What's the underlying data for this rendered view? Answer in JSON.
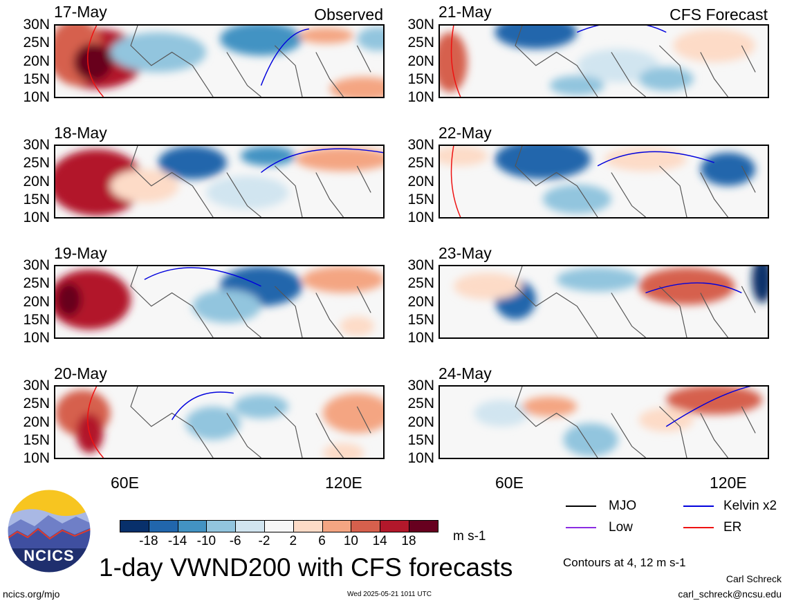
{
  "chart_data": {
    "type": "heatmap",
    "title": "1-day VWND200 with CFS forecasts",
    "columns": {
      "left": "Observed",
      "right": "CFS Forecast"
    },
    "panels": [
      {
        "date": "17-May",
        "source": "observed"
      },
      {
        "date": "18-May",
        "source": "observed"
      },
      {
        "date": "19-May",
        "source": "observed"
      },
      {
        "date": "20-May",
        "source": "observed"
      },
      {
        "date": "21-May",
        "source": "forecast"
      },
      {
        "date": "22-May",
        "source": "forecast"
      },
      {
        "date": "23-May",
        "source": "forecast"
      },
      {
        "date": "24-May",
        "source": "forecast"
      }
    ],
    "y_ticks": [
      "30N",
      "25N",
      "20N",
      "15N",
      "10N"
    ],
    "x_ticks": [
      "60E",
      "120E"
    ],
    "lat_range": [
      10,
      30
    ],
    "colorbar": {
      "labels": [
        "-18",
        "-14",
        "-10",
        "-6",
        "-2",
        "2",
        "6",
        "10",
        "14",
        "18"
      ],
      "unit": "m s-1",
      "colors": [
        "#08306b",
        "#2166ac",
        "#4393c3",
        "#92c5de",
        "#d1e5f0",
        "#f7f7f7",
        "#fddbc7",
        "#f4a582",
        "#d6604d",
        "#b2182b",
        "#67001f"
      ]
    },
    "legend": [
      {
        "label": "MJO",
        "color": "#000000"
      },
      {
        "label": "Kelvin x2",
        "color": "#0000dd"
      },
      {
        "label": "Low",
        "color": "#8a2be2"
      },
      {
        "label": "ER",
        "color": "#ee1111"
      }
    ],
    "contour_note": "Contours at 4, 12 m s-1"
  },
  "footer": {
    "logo_text": "NCICS",
    "site": "ncics.org/mjo",
    "timestamp": "Wed 2025-05-21 1011 UTC",
    "author": "Carl Schreck",
    "email": "carl_schreck@ncsu.edu"
  }
}
